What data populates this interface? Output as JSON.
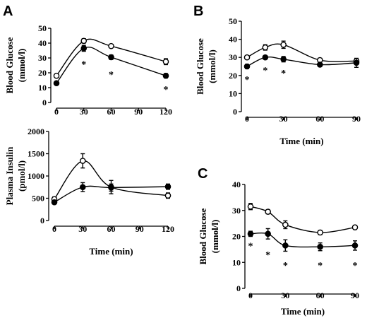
{
  "panels": {
    "A": "A",
    "B": "B",
    "C": "C"
  },
  "chart_data": [
    {
      "id": "A-top",
      "type": "line",
      "ylabel_line1": "Blood Glucose",
      "ylabel_line2": "(mmol/l)",
      "xlabel": "",
      "x": [
        0,
        30,
        60,
        120
      ],
      "xlim": [
        0,
        120
      ],
      "xticks": [
        0,
        30,
        60,
        90,
        120
      ],
      "ylim": [
        0,
        50
      ],
      "yticks": [
        0,
        10,
        20,
        30,
        40,
        50
      ],
      "series": [
        {
          "marker": "open",
          "values": [
            18,
            41.5,
            38,
            27.5
          ],
          "err": [
            1,
            1.5,
            1,
            2
          ]
        },
        {
          "marker": "filled",
          "values": [
            13,
            36.5,
            30.5,
            18
          ],
          "err": [
            1,
            2,
            1.5,
            1.5
          ]
        }
      ],
      "stars": [
        {
          "x": 30,
          "y": 26,
          "label": "*"
        },
        {
          "x": 60,
          "y": 19,
          "label": "*"
        },
        {
          "x": 120,
          "y": 9,
          "label": "*"
        }
      ]
    },
    {
      "id": "A-bottom",
      "type": "line",
      "ylabel_line1": "Plasma Insulin",
      "ylabel_line2": "(pmol/l)",
      "xlabel": "Time (min)",
      "x": [
        0,
        30,
        60,
        120
      ],
      "xlim": [
        0,
        120
      ],
      "xticks": [
        0,
        30,
        60,
        90,
        120
      ],
      "ylim": [
        0,
        2000
      ],
      "yticks": [
        0,
        500,
        1000,
        1500,
        2000
      ],
      "series": [
        {
          "marker": "open",
          "values": [
            480,
            1340,
            750,
            560
          ],
          "err": [
            50,
            160,
            150,
            60
          ]
        },
        {
          "marker": "filled",
          "values": [
            410,
            750,
            740,
            760
          ],
          "err": [
            40,
            100,
            80,
            60
          ]
        }
      ],
      "stars": []
    },
    {
      "id": "B",
      "type": "line",
      "ylabel_line1": "Blood Glucose",
      "ylabel_line2": "(mmol/l)",
      "xlabel": "Time (min)",
      "x": [
        0,
        15,
        30,
        60,
        90
      ],
      "xlim": [
        0,
        90
      ],
      "xticks": [
        0,
        30,
        60,
        90
      ],
      "ylim": [
        0,
        50
      ],
      "yticks": [
        0,
        10,
        20,
        30,
        40,
        50
      ],
      "series": [
        {
          "marker": "open",
          "values": [
            30,
            35.5,
            37,
            28.5,
            28
          ],
          "err": [
            0.8,
            1.5,
            2,
            1,
            0.8
          ]
        },
        {
          "marker": "filled",
          "values": [
            25,
            30,
            29,
            26,
            27
          ],
          "err": [
            1.2,
            1,
            1.5,
            1,
            2.5
          ]
        }
      ],
      "stars": [
        {
          "x": 0,
          "y": 18,
          "label": "*"
        },
        {
          "x": 15,
          "y": 23,
          "label": "*"
        },
        {
          "x": 30,
          "y": 21.5,
          "label": "*"
        }
      ]
    },
    {
      "id": "C",
      "type": "line",
      "ylabel_line1": "Blood Glucose",
      "ylabel_line2": "(mmol/l)",
      "xlabel": "Time (min)",
      "x": [
        0,
        15,
        30,
        60,
        90
      ],
      "xlim": [
        0,
        90
      ],
      "xticks": [
        0,
        30,
        60,
        90
      ],
      "ylim": [
        0,
        40
      ],
      "yticks": [
        0,
        10,
        20,
        30,
        40
      ],
      "series": [
        {
          "marker": "open",
          "values": [
            31.5,
            29.5,
            24.5,
            21.5,
            23.5
          ],
          "err": [
            1.2,
            0.8,
            1.5,
            0.8,
            0.8
          ]
        },
        {
          "marker": "filled",
          "values": [
            21,
            21,
            16.5,
            16,
            16.5
          ],
          "err": [
            1,
            2,
            2.2,
            1.5,
            1.8
          ]
        }
      ],
      "stars": [
        {
          "x": 0,
          "y": 16.5,
          "label": "*"
        },
        {
          "x": 15,
          "y": 13,
          "label": "*"
        },
        {
          "x": 30,
          "y": 9,
          "label": "*"
        },
        {
          "x": 60,
          "y": 9,
          "label": "*"
        },
        {
          "x": 90,
          "y": 9,
          "label": "*"
        }
      ]
    }
  ]
}
